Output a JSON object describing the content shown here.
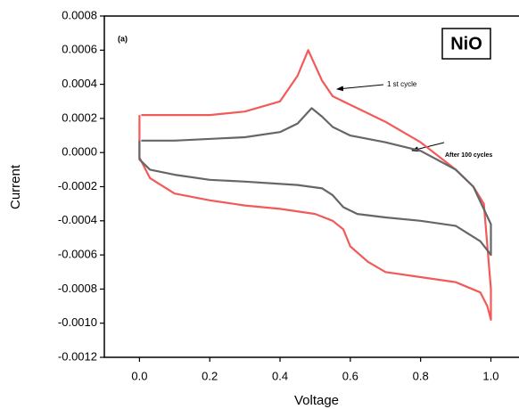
{
  "chart_data": {
    "type": "line",
    "x_label": "Voltage",
    "y_label": "Current",
    "panel_label": "(a)",
    "material_label": "NiO",
    "xlim": [
      -0.1,
      1.08
    ],
    "ylim": [
      -0.0012,
      0.0008
    ],
    "xticks": [
      {
        "value": 0,
        "label": "0.0"
      },
      0.2,
      0.4,
      0.6,
      0.8,
      {
        "value": 1,
        "label": "1.0"
      }
    ],
    "yticks": [
      -0.0012,
      {
        "value": -0.001,
        "label": "-0.0010"
      },
      -0.0008,
      -0.0006,
      -0.0004,
      -0.0002,
      {
        "value": 0,
        "label": "0.0000"
      },
      0.0002,
      0.0004,
      0.0006,
      0.0008
    ],
    "series": [
      {
        "color": "#f25a5a",
        "x": [
          0.005,
          0.1,
          0.2,
          0.3,
          0.4,
          0.45,
          0.48,
          0.52,
          0.55,
          0.6,
          0.7,
          0.8,
          0.9,
          0.95,
          0.98,
          1.0,
          1.0,
          0.99,
          0.97,
          0.9,
          0.8,
          0.7,
          0.65,
          0.6,
          0.58,
          0.55,
          0.5,
          0.4,
          0.3,
          0.2,
          0.1,
          0.03,
          0.0,
          0.0
        ],
        "values": [
          0.00022,
          0.00022,
          0.00022,
          0.00024,
          0.0003,
          0.00045,
          0.0006,
          0.00042,
          0.00033,
          0.00028,
          0.00018,
          6e-05,
          -0.0001,
          -0.0002,
          -0.0003,
          -0.0008,
          -0.00098,
          -0.0009,
          -0.00082,
          -0.00076,
          -0.00073,
          -0.0007,
          -0.00064,
          -0.00055,
          -0.00045,
          -0.0004,
          -0.00036,
          -0.00033,
          -0.00031,
          -0.00028,
          -0.00024,
          -0.00015,
          -3e-05,
          0.00022
        ]
      },
      {
        "color": "#666666",
        "x": [
          0.005,
          0.1,
          0.3,
          0.4,
          0.45,
          0.49,
          0.52,
          0.55,
          0.6,
          0.7,
          0.8,
          0.9,
          0.95,
          1.0,
          1.0,
          0.97,
          0.9,
          0.8,
          0.7,
          0.62,
          0.58,
          0.55,
          0.52,
          0.45,
          0.3,
          0.2,
          0.1,
          0.03,
          0.0,
          0.0
        ],
        "values": [
          7e-05,
          7e-05,
          9e-05,
          0.00012,
          0.00017,
          0.00026,
          0.00021,
          0.00015,
          0.0001,
          6e-05,
          1e-05,
          -0.0001,
          -0.0002,
          -0.00042,
          -0.0006,
          -0.00052,
          -0.00043,
          -0.0004,
          -0.00038,
          -0.00036,
          -0.00032,
          -0.00025,
          -0.00021,
          -0.00019,
          -0.00017,
          -0.00016,
          -0.00013,
          -0.0001,
          -4e-05,
          7e-05
        ]
      }
    ],
    "annotations": [
      "1 st cycle",
      "After 100 cycles"
    ]
  }
}
